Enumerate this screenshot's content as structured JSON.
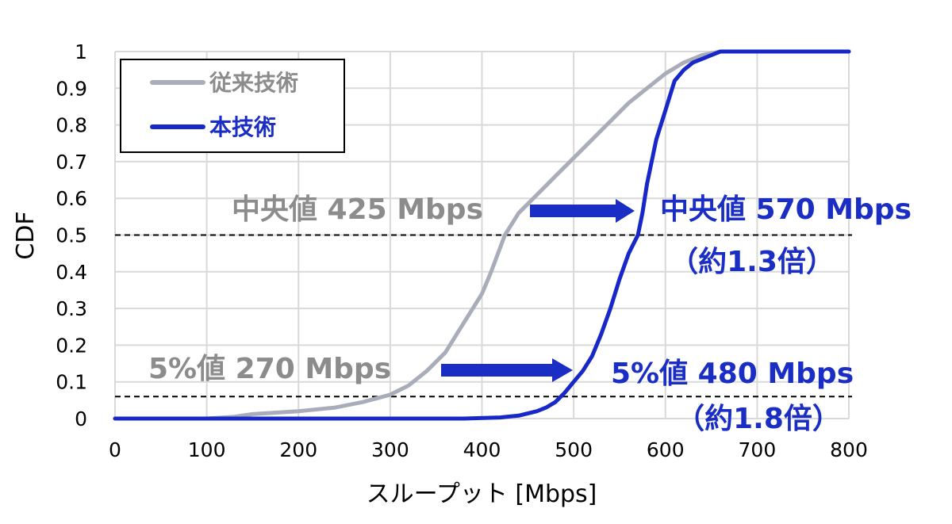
{
  "colors": {
    "conventional": "#a9adb9",
    "proposed": "#1828c8",
    "grid": "#d9d9d9",
    "anno_gray": "#8c8c8c",
    "anno_blue": "#1a2dc4"
  },
  "chart_data": {
    "type": "line",
    "xlabel": "スループット [Mbps]",
    "ylabel": "CDF",
    "xlim": [
      0,
      800
    ],
    "ylim": [
      0,
      1
    ],
    "x_ticks": [
      "0",
      "100",
      "200",
      "300",
      "400",
      "500",
      "600",
      "700",
      "800"
    ],
    "y_ticks": [
      "0",
      "0.1",
      "0.2",
      "0.3",
      "0.4",
      "0.5",
      "0.6",
      "0.7",
      "0.8",
      "0.9",
      "1"
    ],
    "grid": true,
    "legend_position": "top-left",
    "series": [
      {
        "name": "従来技術",
        "color": "#a9adb9",
        "points": [
          [
            0,
            0
          ],
          [
            100,
            0
          ],
          [
            130,
            0.005
          ],
          [
            150,
            0.012
          ],
          [
            200,
            0.02
          ],
          [
            240,
            0.03
          ],
          [
            270,
            0.045
          ],
          [
            300,
            0.065
          ],
          [
            320,
            0.09
          ],
          [
            340,
            0.13
          ],
          [
            360,
            0.18
          ],
          [
            380,
            0.26
          ],
          [
            400,
            0.34
          ],
          [
            410,
            0.4
          ],
          [
            425,
            0.5
          ],
          [
            440,
            0.56
          ],
          [
            460,
            0.61
          ],
          [
            480,
            0.66
          ],
          [
            500,
            0.71
          ],
          [
            520,
            0.76
          ],
          [
            540,
            0.81
          ],
          [
            560,
            0.86
          ],
          [
            580,
            0.9
          ],
          [
            600,
            0.94
          ],
          [
            620,
            0.97
          ],
          [
            640,
            0.99
          ],
          [
            660,
            1.0
          ],
          [
            800,
            1.0
          ]
        ]
      },
      {
        "name": "本技術",
        "color": "#1828c8",
        "points": [
          [
            0,
            0
          ],
          [
            380,
            0
          ],
          [
            420,
            0.003
          ],
          [
            440,
            0.008
          ],
          [
            460,
            0.02
          ],
          [
            470,
            0.03
          ],
          [
            480,
            0.045
          ],
          [
            490,
            0.07
          ],
          [
            500,
            0.1
          ],
          [
            510,
            0.13
          ],
          [
            520,
            0.17
          ],
          [
            530,
            0.23
          ],
          [
            540,
            0.3
          ],
          [
            550,
            0.38
          ],
          [
            560,
            0.45
          ],
          [
            570,
            0.5
          ],
          [
            575,
            0.56
          ],
          [
            580,
            0.64
          ],
          [
            590,
            0.76
          ],
          [
            600,
            0.84
          ],
          [
            605,
            0.88
          ],
          [
            610,
            0.92
          ],
          [
            620,
            0.95
          ],
          [
            630,
            0.97
          ],
          [
            640,
            0.98
          ],
          [
            650,
            0.99
          ],
          [
            660,
            1.0
          ],
          [
            800,
            1.0
          ]
        ]
      }
    ],
    "reference_lines": [
      {
        "y": 0.5,
        "style": "dashed"
      },
      {
        "y": 0.06,
        "style": "dashed"
      }
    ],
    "annotations": [
      {
        "id": "median_conventional",
        "text": "中央値 425 Mbps",
        "color": "#8c8c8c"
      },
      {
        "id": "median_proposed",
        "text": "中央値 570 Mbps",
        "color": "#1a2dc4"
      },
      {
        "id": "median_ratio",
        "text": "（約1.3倍）",
        "color": "#1a2dc4"
      },
      {
        "id": "p5_conventional",
        "text": "5%値 270 Mbps",
        "color": "#8c8c8c"
      },
      {
        "id": "p5_proposed",
        "text": "5%値 480 Mbps",
        "color": "#1a2dc4"
      },
      {
        "id": "p5_ratio",
        "text": "（約1.8倍）",
        "color": "#1a2dc4"
      }
    ]
  }
}
